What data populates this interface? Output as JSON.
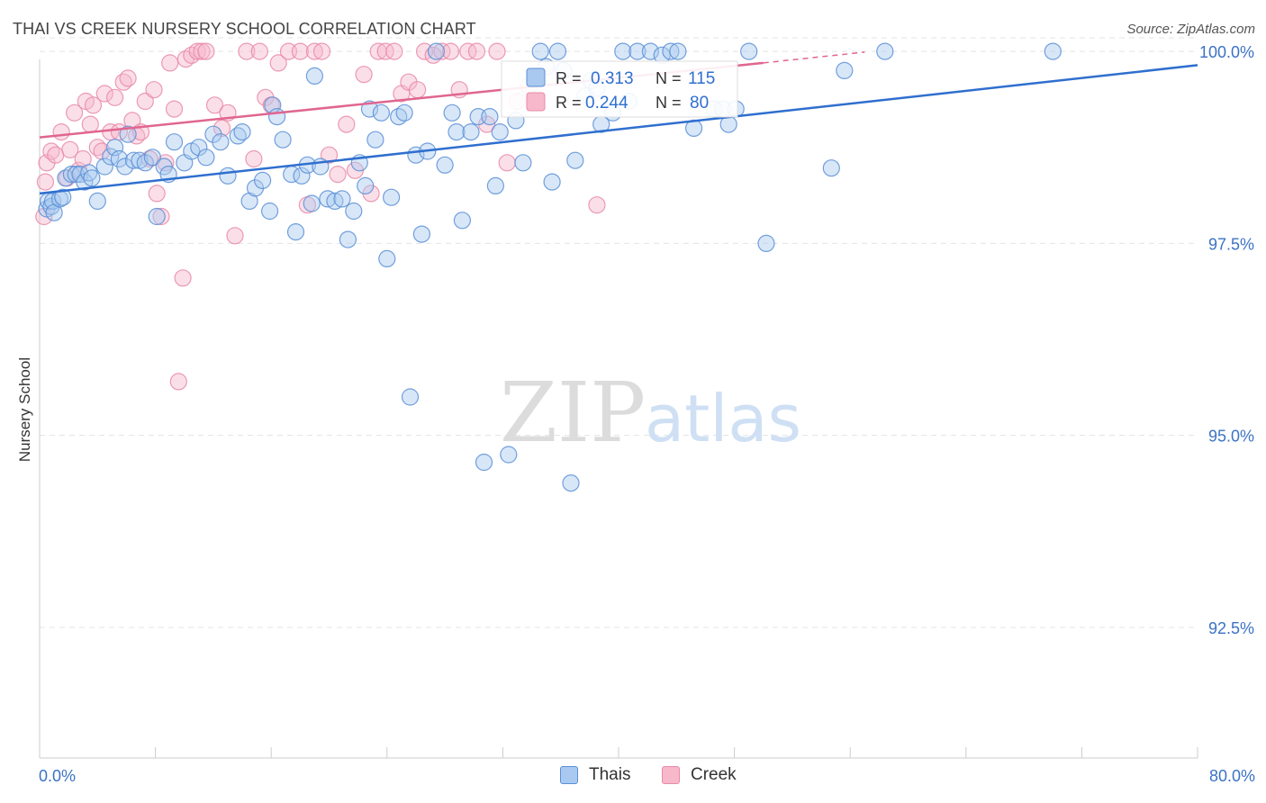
{
  "header": {
    "title": "THAI VS CREEK NURSERY SCHOOL CORRELATION CHART",
    "source": "Source: ZipAtlas.com"
  },
  "watermark": {
    "zip": "ZIP",
    "atlas": "atlas"
  },
  "legend_top": [
    {
      "r_label": "R = ",
      "r_value": "0.313",
      "n_label": "N = ",
      "n_value": "115"
    },
    {
      "r_label": "R = ",
      "r_value": "0.244",
      "n_label": "N = ",
      "n_value": "80"
    }
  ],
  "legend_bottom": [
    {
      "label": "Thais"
    },
    {
      "label": "Creek"
    }
  ],
  "colors": {
    "thais_fill": "#a9c9f0",
    "thais_stroke": "#5b8fd6",
    "thais_line": "#2f6fcf",
    "creek_fill": "#f7b8cc",
    "creek_stroke": "#e88aa8",
    "creek_line": "#e0668f",
    "axis_text": "#3b73c4",
    "grid": "#e4e4e4"
  },
  "chart_data": {
    "type": "scatter",
    "title": "THAI VS CREEK NURSERY SCHOOL CORRELATION CHART",
    "xlabel": "",
    "ylabel": "Nursery School",
    "xlim": [
      0,
      80
    ],
    "ylim": [
      90.8,
      100.2
    ],
    "x_tick_labels": [
      "0.0%",
      "80.0%"
    ],
    "y_ticks": [
      {
        "value": 100.0,
        "label": "100.0%"
      },
      {
        "value": 97.5,
        "label": "97.5%"
      },
      {
        "value": 95.0,
        "label": "95.0%"
      },
      {
        "value": 92.5,
        "label": "92.5%"
      }
    ],
    "series": [
      {
        "name": "Thais",
        "r": 0.313,
        "n": 115,
        "trend": {
          "x": [
            0,
            80
          ],
          "y": [
            98.15,
            99.82
          ]
        },
        "points": [
          [
            0.5,
            97.95
          ],
          [
            0.6,
            98.05
          ],
          [
            0.8,
            97.98
          ],
          [
            0.9,
            98.05
          ],
          [
            1.0,
            97.9
          ],
          [
            1.4,
            98.08
          ],
          [
            1.6,
            98.1
          ],
          [
            1.8,
            98.35
          ],
          [
            2.2,
            98.4
          ],
          [
            2.5,
            98.4
          ],
          [
            2.8,
            98.4
          ],
          [
            3.1,
            98.3
          ],
          [
            3.4,
            98.42
          ],
          [
            3.6,
            98.35
          ],
          [
            4.0,
            98.05
          ],
          [
            4.5,
            98.5
          ],
          [
            4.9,
            98.63
          ],
          [
            5.2,
            98.75
          ],
          [
            5.5,
            98.6
          ],
          [
            5.9,
            98.5
          ],
          [
            6.1,
            98.92
          ],
          [
            6.5,
            98.58
          ],
          [
            6.9,
            98.58
          ],
          [
            7.3,
            98.55
          ],
          [
            7.8,
            98.62
          ],
          [
            8.1,
            97.85
          ],
          [
            8.6,
            98.5
          ],
          [
            8.9,
            98.4
          ],
          [
            9.3,
            98.82
          ],
          [
            10.0,
            98.55
          ],
          [
            10.5,
            98.7
          ],
          [
            11.0,
            98.75
          ],
          [
            11.5,
            98.62
          ],
          [
            12.0,
            98.92
          ],
          [
            12.5,
            98.82
          ],
          [
            13.0,
            98.38
          ],
          [
            13.7,
            98.9
          ],
          [
            14.0,
            98.95
          ],
          [
            14.5,
            98.05
          ],
          [
            14.9,
            98.22
          ],
          [
            15.4,
            98.32
          ],
          [
            15.9,
            97.92
          ],
          [
            16.1,
            99.3
          ],
          [
            16.4,
            99.15
          ],
          [
            16.8,
            98.85
          ],
          [
            17.4,
            98.4
          ],
          [
            17.7,
            97.65
          ],
          [
            18.1,
            98.38
          ],
          [
            18.5,
            98.52
          ],
          [
            18.8,
            98.02
          ],
          [
            19.0,
            99.68
          ],
          [
            19.4,
            98.5
          ],
          [
            19.9,
            98.08
          ],
          [
            20.4,
            98.05
          ],
          [
            20.9,
            98.08
          ],
          [
            21.3,
            97.55
          ],
          [
            21.7,
            97.92
          ],
          [
            22.1,
            98.55
          ],
          [
            22.5,
            98.25
          ],
          [
            22.8,
            99.25
          ],
          [
            23.2,
            98.85
          ],
          [
            23.6,
            99.2
          ],
          [
            24.0,
            97.3
          ],
          [
            24.3,
            98.1
          ],
          [
            24.8,
            99.15
          ],
          [
            25.2,
            99.2
          ],
          [
            25.6,
            95.5
          ],
          [
            26.0,
            98.65
          ],
          [
            26.4,
            97.62
          ],
          [
            26.8,
            98.7
          ],
          [
            27.4,
            100.0
          ],
          [
            28.0,
            98.52
          ],
          [
            28.5,
            99.2
          ],
          [
            28.8,
            98.95
          ],
          [
            29.2,
            97.8
          ],
          [
            29.8,
            98.95
          ],
          [
            30.3,
            99.15
          ],
          [
            30.7,
            94.65
          ],
          [
            31.1,
            99.15
          ],
          [
            31.5,
            98.25
          ],
          [
            31.8,
            98.95
          ],
          [
            32.4,
            94.75
          ],
          [
            32.9,
            99.1
          ],
          [
            33.4,
            98.55
          ],
          [
            34.6,
            100.0
          ],
          [
            35.0,
            99.8
          ],
          [
            35.4,
            98.3
          ],
          [
            35.8,
            100.0
          ],
          [
            36.2,
            99.75
          ],
          [
            36.7,
            94.38
          ],
          [
            37.0,
            98.58
          ],
          [
            37.7,
            99.42
          ],
          [
            38.1,
            99.62
          ],
          [
            38.5,
            99.52
          ],
          [
            38.8,
            99.05
          ],
          [
            39.6,
            99.2
          ],
          [
            40.3,
            100.0
          ],
          [
            40.7,
            99.35
          ],
          [
            41.3,
            100.0
          ],
          [
            42.2,
            100.0
          ],
          [
            43.0,
            99.95
          ],
          [
            43.6,
            100.0
          ],
          [
            44.1,
            100.0
          ],
          [
            45.2,
            99.0
          ],
          [
            46.6,
            99.25
          ],
          [
            47.2,
            99.25
          ],
          [
            47.6,
            99.05
          ],
          [
            48.1,
            99.25
          ],
          [
            49.0,
            100.0
          ],
          [
            50.2,
            97.5
          ],
          [
            54.7,
            98.48
          ],
          [
            55.6,
            99.75
          ],
          [
            58.4,
            100.0
          ],
          [
            70.0,
            100.0
          ]
        ]
      },
      {
        "name": "Creek",
        "r": 0.244,
        "n": 80,
        "trend": {
          "x": [
            0,
            50
          ],
          "y": [
            98.88,
            99.85
          ]
        },
        "trend_dashed": {
          "x": [
            50,
            57
          ],
          "y": [
            99.85,
            99.99
          ]
        },
        "points": [
          [
            0.3,
            97.85
          ],
          [
            0.4,
            98.3
          ],
          [
            0.5,
            98.55
          ],
          [
            0.8,
            98.7
          ],
          [
            1.1,
            98.65
          ],
          [
            1.5,
            98.95
          ],
          [
            1.9,
            98.35
          ],
          [
            2.1,
            98.72
          ],
          [
            2.4,
            99.2
          ],
          [
            2.7,
            98.45
          ],
          [
            3.0,
            98.6
          ],
          [
            3.2,
            99.35
          ],
          [
            3.5,
            99.05
          ],
          [
            3.7,
            99.3
          ],
          [
            4.0,
            98.75
          ],
          [
            4.3,
            98.7
          ],
          [
            4.5,
            99.45
          ],
          [
            4.9,
            98.95
          ],
          [
            5.2,
            99.4
          ],
          [
            5.5,
            98.95
          ],
          [
            5.8,
            99.6
          ],
          [
            6.1,
            99.65
          ],
          [
            6.4,
            99.1
          ],
          [
            6.7,
            98.9
          ],
          [
            7.0,
            98.95
          ],
          [
            7.3,
            99.35
          ],
          [
            7.6,
            98.6
          ],
          [
            7.9,
            99.5
          ],
          [
            8.1,
            98.15
          ],
          [
            8.4,
            97.85
          ],
          [
            8.7,
            98.55
          ],
          [
            9.0,
            99.85
          ],
          [
            9.3,
            99.25
          ],
          [
            9.6,
            95.7
          ],
          [
            9.9,
            97.05
          ],
          [
            10.1,
            99.9
          ],
          [
            10.5,
            99.95
          ],
          [
            10.9,
            100.0
          ],
          [
            11.2,
            100.0
          ],
          [
            11.5,
            100.0
          ],
          [
            12.1,
            99.3
          ],
          [
            12.6,
            99.0
          ],
          [
            13.0,
            99.2
          ],
          [
            13.5,
            97.6
          ],
          [
            14.3,
            100.0
          ],
          [
            14.8,
            98.6
          ],
          [
            15.2,
            100.0
          ],
          [
            15.6,
            99.4
          ],
          [
            16.0,
            99.3
          ],
          [
            16.5,
            99.85
          ],
          [
            17.2,
            100.0
          ],
          [
            18.0,
            100.0
          ],
          [
            18.5,
            98.0
          ],
          [
            19.0,
            100.0
          ],
          [
            19.5,
            100.0
          ],
          [
            20.0,
            98.65
          ],
          [
            20.6,
            98.4
          ],
          [
            21.2,
            99.05
          ],
          [
            21.8,
            98.45
          ],
          [
            22.4,
            99.7
          ],
          [
            22.9,
            98.15
          ],
          [
            23.4,
            100.0
          ],
          [
            23.9,
            100.0
          ],
          [
            24.5,
            100.0
          ],
          [
            25.0,
            99.45
          ],
          [
            25.5,
            99.6
          ],
          [
            26.1,
            99.5
          ],
          [
            26.6,
            100.0
          ],
          [
            27.2,
            99.95
          ],
          [
            27.8,
            100.0
          ],
          [
            28.4,
            100.0
          ],
          [
            29.0,
            99.5
          ],
          [
            29.6,
            100.0
          ],
          [
            30.2,
            100.0
          ],
          [
            30.9,
            99.05
          ],
          [
            31.6,
            100.0
          ],
          [
            32.3,
            98.55
          ],
          [
            33.0,
            99.35
          ],
          [
            33.8,
            99.55
          ],
          [
            38.5,
            98.0
          ]
        ]
      }
    ]
  }
}
